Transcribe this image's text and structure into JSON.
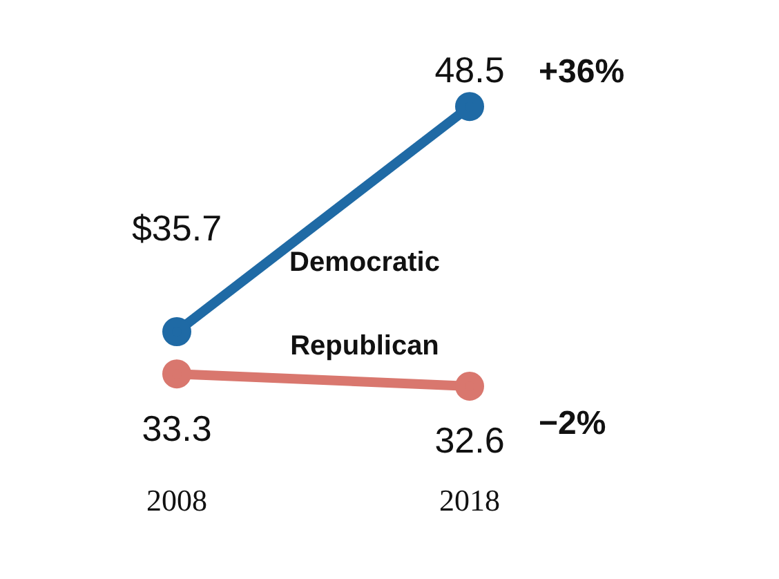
{
  "chart_data": {
    "type": "line",
    "categories": [
      "2008",
      "2018"
    ],
    "marker": "circle",
    "series": [
      {
        "name": "Democratic",
        "color": "#1f6aa5",
        "values": [
          35.7,
          48.5
        ],
        "value_labels": [
          "$35.7",
          "48.5"
        ]
      },
      {
        "name": "Republican",
        "color": "#d9776e",
        "values": [
          33.3,
          32.6
        ],
        "value_labels": [
          "33.3",
          "32.6"
        ]
      }
    ],
    "annotations": [
      {
        "text": "+36%",
        "x": "2018",
        "y": 48.5
      },
      {
        "text": "−2%",
        "x": "2018",
        "y": 32.6
      }
    ]
  }
}
